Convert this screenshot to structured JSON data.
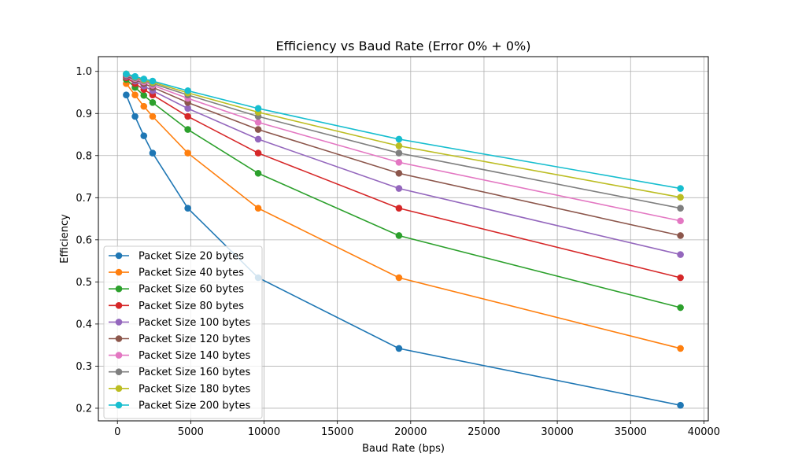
{
  "chart_data": {
    "type": "line",
    "title": "Efficiency vs Baud Rate (Error 0% + 0%)",
    "xlabel": "Baud Rate (bps)",
    "ylabel": "Efficiency",
    "xlim": [
      -1300,
      40300
    ],
    "ylim": [
      0.17,
      1.035
    ],
    "xticks": [
      0,
      5000,
      10000,
      15000,
      20000,
      25000,
      30000,
      35000,
      40000
    ],
    "yticks": [
      0.2,
      0.3,
      0.4,
      0.5,
      0.6,
      0.7,
      0.8,
      0.9,
      1.0
    ],
    "xtick_labels": [
      "0",
      "5000",
      "10000",
      "15000",
      "20000",
      "25000",
      "30000",
      "35000",
      "40000"
    ],
    "ytick_labels": [
      "0.2",
      "0.3",
      "0.4",
      "0.5",
      "0.6",
      "0.7",
      "0.8",
      "0.9",
      "1.0"
    ],
    "grid": true,
    "legend_position": "bottom-left",
    "x": [
      600,
      1200,
      1800,
      2400,
      4800,
      9600,
      19200,
      38400
    ],
    "series": [
      {
        "name": "Packet Size 20 bytes",
        "color": "#1f77b4",
        "values": [
          0.944,
          0.893,
          0.847,
          0.806,
          0.675,
          0.51,
          0.342,
          0.207
        ]
      },
      {
        "name": "Packet Size 40 bytes",
        "color": "#ff7f0e",
        "values": [
          0.971,
          0.944,
          0.917,
          0.893,
          0.806,
          0.675,
          0.51,
          0.342
        ]
      },
      {
        "name": "Packet Size 60 bytes",
        "color": "#2ca02c",
        "values": [
          0.981,
          0.962,
          0.943,
          0.926,
          0.862,
          0.758,
          0.61,
          0.439
        ]
      },
      {
        "name": "Packet Size 80 bytes",
        "color": "#d62728",
        "values": [
          0.985,
          0.971,
          0.957,
          0.944,
          0.893,
          0.806,
          0.675,
          0.51
        ]
      },
      {
        "name": "Packet Size 100 bytes",
        "color": "#9467bd",
        "values": [
          0.988,
          0.977,
          0.965,
          0.954,
          0.912,
          0.839,
          0.722,
          0.565
        ]
      },
      {
        "name": "Packet Size 120 bytes",
        "color": "#8c564b",
        "values": [
          0.99,
          0.98,
          0.971,
          0.962,
          0.926,
          0.862,
          0.758,
          0.61
        ]
      },
      {
        "name": "Packet Size 140 bytes",
        "color": "#e377c2",
        "values": [
          0.992,
          0.983,
          0.975,
          0.967,
          0.936,
          0.879,
          0.784,
          0.645
        ]
      },
      {
        "name": "Packet Size 160 bytes",
        "color": "#7f7f7f",
        "values": [
          0.993,
          0.985,
          0.978,
          0.971,
          0.944,
          0.893,
          0.806,
          0.675
        ]
      },
      {
        "name": "Packet Size 180 bytes",
        "color": "#bcbd22",
        "values": [
          0.994,
          0.987,
          0.98,
          0.974,
          0.949,
          0.903,
          0.823,
          0.701
        ]
      },
      {
        "name": "Packet Size 200 bytes",
        "color": "#17becf",
        "values": [
          0.994,
          0.988,
          0.982,
          0.977,
          0.954,
          0.912,
          0.839,
          0.722
        ]
      }
    ]
  }
}
